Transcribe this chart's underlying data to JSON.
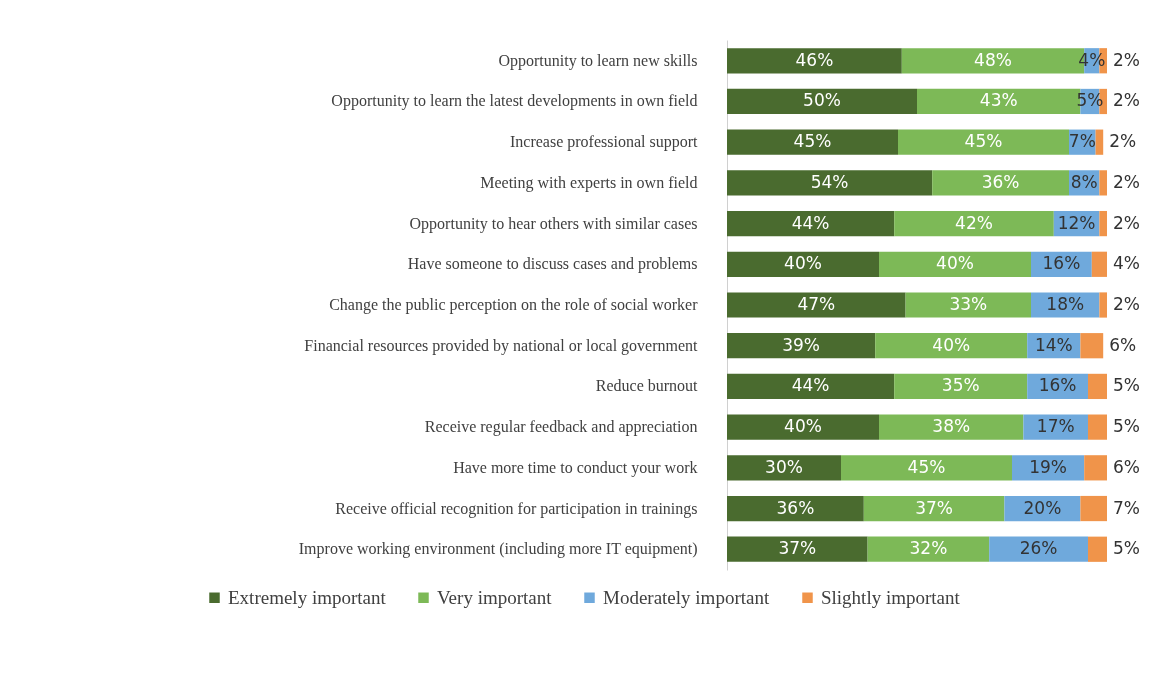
{
  "chart_data": {
    "type": "bar",
    "orientation": "horizontal",
    "stacked": true,
    "legend": "bottom",
    "grid": false,
    "categories": [
      "Opportunity to learn new skills",
      "Opportunity to learn the latest developments in own field",
      "Increase professional support",
      "Meeting with experts in own field",
      "Opportunity to hear others with similar cases",
      "Have someone to discuss  cases and problems",
      "Change the  public perception on the role of social worker",
      "Financial resources provided by national or local government",
      "Reduce burnout",
      "Receive regular feedback and appreciation",
      "Have more time to conduct your work",
      "Receive official recognition for participation in trainings",
      "Improve  working environment (including more IT equipment)"
    ],
    "series": [
      {
        "name": "Extremely important",
        "color": "#4a6b2f",
        "values": [
          46,
          50,
          45,
          54,
          44,
          40,
          47,
          39,
          44,
          40,
          30,
          36,
          37
        ],
        "value_labels": [
          "46%",
          "50%",
          "45%",
          "54%",
          "44%",
          "40%",
          "47%",
          "39%",
          "44%",
          "40%",
          "30%",
          "36%",
          "37%"
        ]
      },
      {
        "name": "Very important",
        "color": "#7db957",
        "values": [
          48,
          43,
          45,
          36,
          42,
          40,
          33,
          40,
          35,
          38,
          45,
          37,
          32
        ],
        "value_labels": [
          "48%",
          "43%",
          "45%",
          "36%",
          "42%",
          "40%",
          "33%",
          "40%",
          "35%",
          "38%",
          "45%",
          "37%",
          "32%"
        ]
      },
      {
        "name": "Moderately important",
        "color": "#6fa9dc",
        "values": [
          4,
          5,
          7,
          8,
          12,
          16,
          18,
          14,
          16,
          17,
          19,
          20,
          26
        ],
        "value_labels": [
          "4%",
          "5%",
          "7%",
          "8%",
          "12%",
          "16%",
          "18%",
          "14%",
          "16%",
          "17%",
          "19%",
          "20%",
          "26%"
        ]
      },
      {
        "name": "Slightly important",
        "color": "#f0944a",
        "values": [
          2,
          2,
          2,
          2,
          2,
          4,
          2,
          6,
          5,
          5,
          6,
          7,
          5
        ],
        "value_labels": [
          "2%",
          "2%",
          "2%",
          "2%",
          "2%",
          "4%",
          "2%",
          "6%",
          "5%",
          "5%",
          "6%",
          "7%",
          "5%"
        ]
      }
    ]
  }
}
